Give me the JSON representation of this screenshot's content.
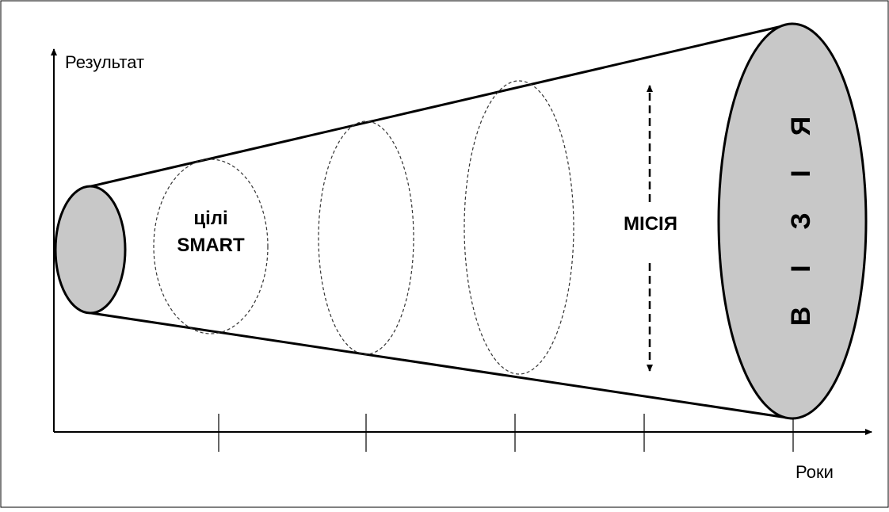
{
  "axes": {
    "y_label": "Результат",
    "x_label": "Роки"
  },
  "labels": {
    "goals_line1": "цілі",
    "goals_line2": "SMART",
    "mission": "МІСІЯ",
    "vision_letters": [
      "В",
      "І",
      "З",
      "І",
      "Я"
    ]
  },
  "colors": {
    "stroke": "#000000",
    "ellipse_fill": "#c8c8c8",
    "background": "#ffffff"
  }
}
